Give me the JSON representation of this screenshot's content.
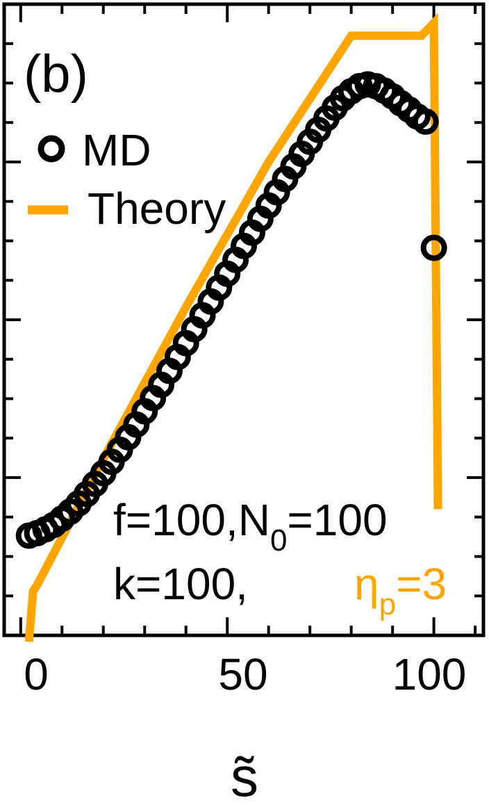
{
  "chart_data": {
    "type": "line",
    "panel_label": "(b)",
    "xlabel": "s̃",
    "ylabel": "",
    "xlim": [
      -4,
      112
    ],
    "ylim": [
      0,
      1
    ],
    "x_ticks": [
      0,
      50,
      100
    ],
    "x_tick_labels": [
      "0",
      "50",
      "100"
    ],
    "legend": {
      "placement": "top-left",
      "entries": [
        {
          "label": "MD",
          "marker": "open-circle"
        },
        {
          "label": "Theory",
          "marker": "line"
        }
      ]
    },
    "annotations": {
      "line1_a": "f=100,N",
      "line1_sub": "0",
      "line1_b": "=100",
      "line2": "k=100,",
      "eta": "η",
      "eta_sub": "p",
      "eta_val": "=3"
    },
    "series": [
      {
        "name": "MD",
        "style": "scatter",
        "color": "#000000",
        "x": [
          2,
          4,
          6,
          8,
          10,
          12,
          14,
          16,
          18,
          20,
          22,
          24,
          26,
          28,
          30,
          32,
          34,
          36,
          38,
          40,
          42,
          44,
          46,
          48,
          50,
          52,
          54,
          56,
          58,
          60,
          62,
          64,
          66,
          68,
          70,
          72,
          74,
          76,
          78,
          80,
          82,
          84,
          86,
          88,
          90,
          92,
          94,
          96,
          98,
          100
        ],
        "y": [
          0.158,
          0.162,
          0.168,
          0.175,
          0.185,
          0.196,
          0.209,
          0.224,
          0.24,
          0.257,
          0.275,
          0.294,
          0.314,
          0.334,
          0.355,
          0.376,
          0.397,
          0.419,
          0.441,
          0.463,
          0.485,
          0.507,
          0.529,
          0.551,
          0.573,
          0.595,
          0.617,
          0.638,
          0.66,
          0.681,
          0.702,
          0.723,
          0.743,
          0.763,
          0.782,
          0.801,
          0.819,
          0.836,
          0.851,
          0.862,
          0.87,
          0.873,
          0.87,
          0.863,
          0.854,
          0.843,
          0.833,
          0.822,
          0.814,
          0.614
        ]
      },
      {
        "name": "Theory",
        "style": "line",
        "color": "#FFA500",
        "x": [
          2,
          3,
          4,
          20,
          40,
          60,
          80,
          90,
          97,
          100,
          101
        ],
        "y": [
          -0.01,
          0.07,
          0.08,
          0.28,
          0.52,
          0.75,
          0.95,
          0.95,
          0.95,
          0.97,
          0.2
        ]
      }
    ]
  }
}
